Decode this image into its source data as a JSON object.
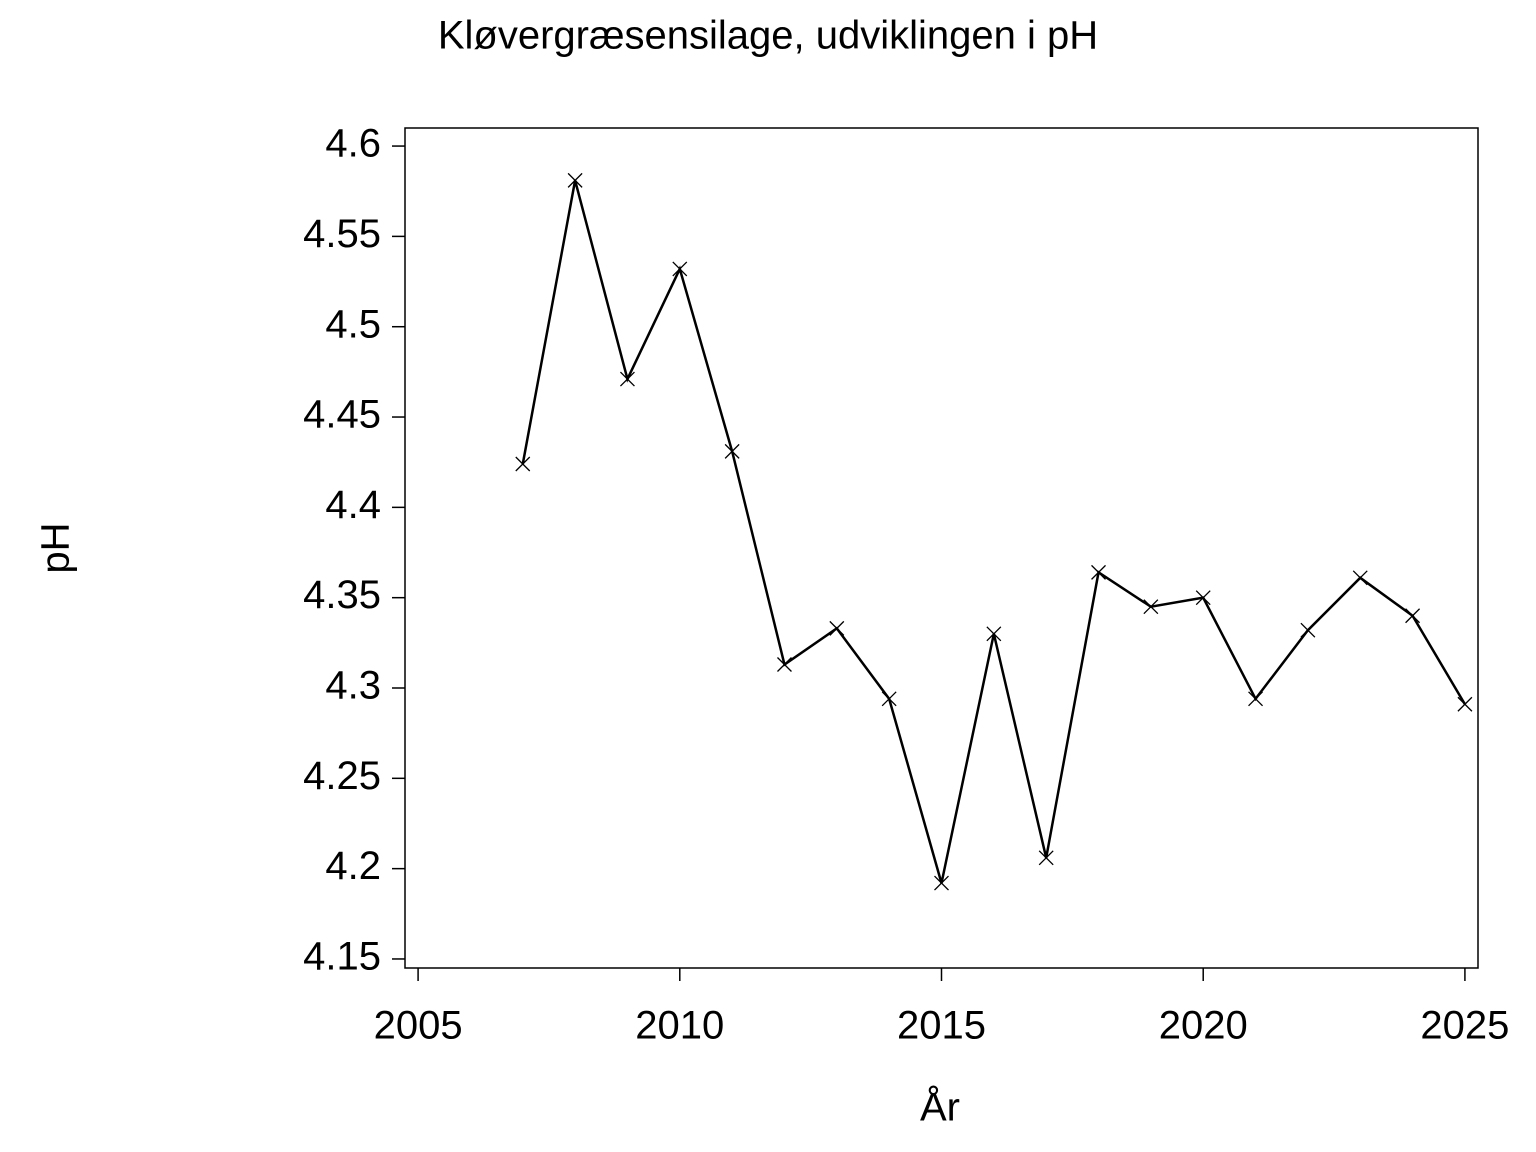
{
  "chart_data": {
    "type": "line",
    "title": "Kløvergræsensilage,  udviklingen  i  pH",
    "x_label": "År",
    "y_label": "pH",
    "x": [
      2007,
      2008,
      2009,
      2010,
      2011,
      2012,
      2013,
      2014,
      2015,
      2016,
      2017,
      2018,
      2019,
      2020,
      2021,
      2022,
      2023,
      2024,
      2025
    ],
    "series": [
      {
        "name": "pH",
        "color": "#000000",
        "marker": "x",
        "values": [
          4.424,
          4.581,
          4.471,
          4.532,
          4.431,
          4.313,
          4.333,
          4.294,
          4.192,
          4.33,
          4.206,
          4.364,
          4.345,
          4.35,
          4.294,
          4.332,
          4.361,
          4.34,
          4.291
        ]
      }
    ],
    "xlim": [
      2004.75,
      2025.25
    ],
    "xticks": [
      2005,
      2010,
      2015,
      2020,
      2025
    ],
    "ylim": [
      4.145,
      4.61
    ],
    "yticks": [
      4.15,
      4.2,
      4.25,
      4.3,
      4.35,
      4.4,
      4.45,
      4.5,
      4.55,
      4.6
    ],
    "grid": false
  }
}
